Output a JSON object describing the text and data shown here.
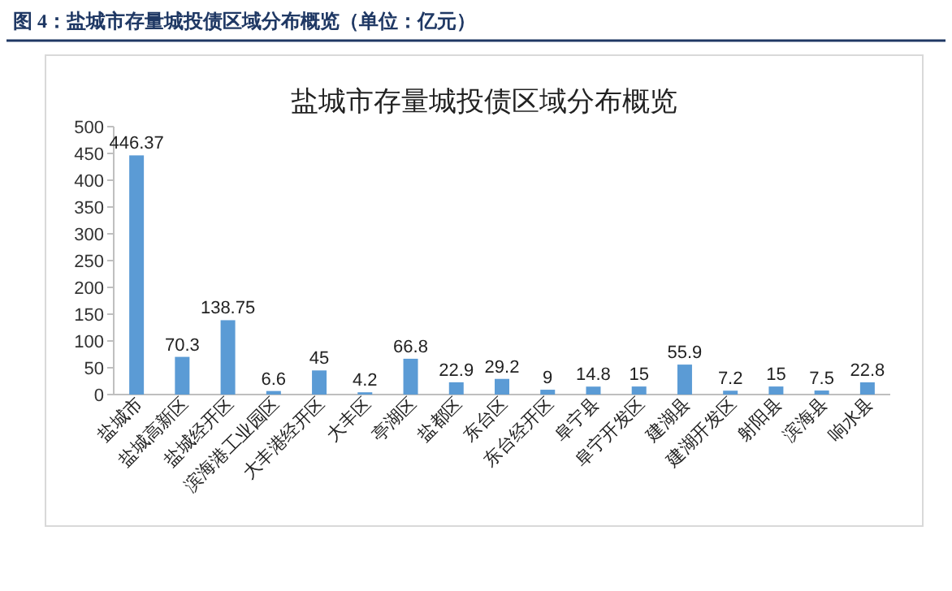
{
  "chart_data": {
    "type": "bar",
    "title": "图 4：盐城市存量城投债区域分布概览（单位：亿元）",
    "subtitle": "盐城市存量城投债区域分布概览",
    "categories": [
      "盐城市",
      "盐城高新区",
      "盐城经开区",
      "滨海港工业园区",
      "大丰港经开区",
      "大丰区",
      "亭湖区",
      "盐都区",
      "东台区",
      "东台经开区",
      "阜宁县",
      "阜宁开发区",
      "建湖县",
      "建湖开发区",
      "射阳县",
      "滨海县",
      "响水县"
    ],
    "values": [
      446.37,
      70.3,
      138.75,
      6.6,
      45,
      4.2,
      66.8,
      22.9,
      29.2,
      9,
      14.8,
      15,
      55.9,
      7.2,
      15,
      7.5,
      22.8
    ],
    "color": "#5b9bd5",
    "ylim": [
      0,
      500
    ],
    "yticks": [
      0,
      50,
      100,
      150,
      200,
      250,
      300,
      350,
      400,
      450,
      500
    ],
    "data_labels": true
  }
}
